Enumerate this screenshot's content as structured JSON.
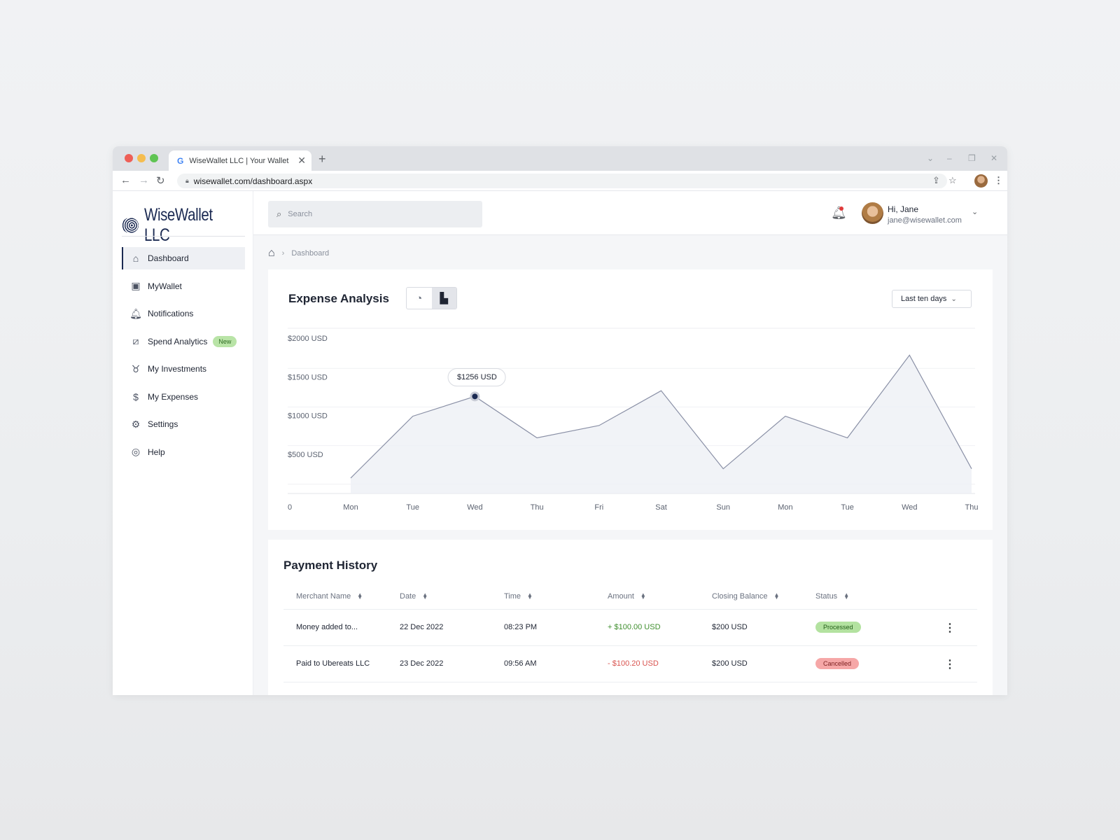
{
  "browser": {
    "tab_title": "WiseWallet LLC | Your Wallet",
    "new_tab": "+",
    "url": "wisewallet.com/dashboard.aspx"
  },
  "brand": {
    "name": "WiseWallet LLC"
  },
  "sidebar": {
    "items": [
      {
        "label": "Dashboard",
        "icon": "home-icon"
      },
      {
        "label": "MyWallet",
        "icon": "wallet-icon"
      },
      {
        "label": "Notifications",
        "icon": "bell-icon"
      },
      {
        "label": "Spend Analytics",
        "icon": "analytics-icon",
        "badge": "New"
      },
      {
        "label": "My Investments",
        "icon": "piggy-bank-icon"
      },
      {
        "label": "My Expenses",
        "icon": "expenses-icon"
      },
      {
        "label": "Settings",
        "icon": "gear-icon"
      },
      {
        "label": "Help",
        "icon": "help-icon"
      }
    ],
    "active": "Dashboard"
  },
  "topbar": {
    "search_placeholder": "Search",
    "user_greeting": "Hi, Jane",
    "user_email": "jane@wisewallet.com"
  },
  "breadcrumb": {
    "current": "Dashboard"
  },
  "expense_card": {
    "title": "Expense Analysis",
    "range_label": "Last ten days",
    "tooltip": "$1256 USD"
  },
  "chart_data": {
    "type": "area",
    "title": "Expense Analysis",
    "categories": [
      "Mon",
      "Tue",
      "Wed",
      "Thu",
      "Fri",
      "Sat",
      "Sun",
      "Mon",
      "Tue",
      "Wed",
      "Thu"
    ],
    "x_start_label": "0",
    "y_tick_labels": [
      "$2000 USD",
      "$1500 USD",
      "$1000 USD",
      "$500 USD"
    ],
    "y_ticks": [
      2000,
      1500,
      1000,
      500
    ],
    "ylim": [
      0,
      2000
    ],
    "values": [
      200,
      1000,
      1256,
      720,
      880,
      1330,
      320,
      1000,
      720,
      1790,
      320
    ],
    "highlight_index": 2,
    "grid": true,
    "colors": {
      "line": "#8a90a6",
      "area": "#eef0f5",
      "marker": "#1b2a52"
    }
  },
  "payment_history": {
    "title": "Payment History",
    "columns": [
      "Merchant Name",
      "Date",
      "Time",
      "Amount",
      "Closing Balance",
      "Status"
    ],
    "rows": [
      {
        "merchant": "Money added to...",
        "date": "22 Dec 2022",
        "time": "08:23 PM",
        "amount": "+ $100.00 USD",
        "balance": "$200 USD",
        "status": "Processed"
      },
      {
        "merchant": "Paid to Ubereats LLC",
        "date": "23 Dec 2022",
        "time": "09:56 AM",
        "amount": "- $100.20 USD",
        "balance": "$200 USD",
        "status": "Cancelled"
      }
    ]
  }
}
